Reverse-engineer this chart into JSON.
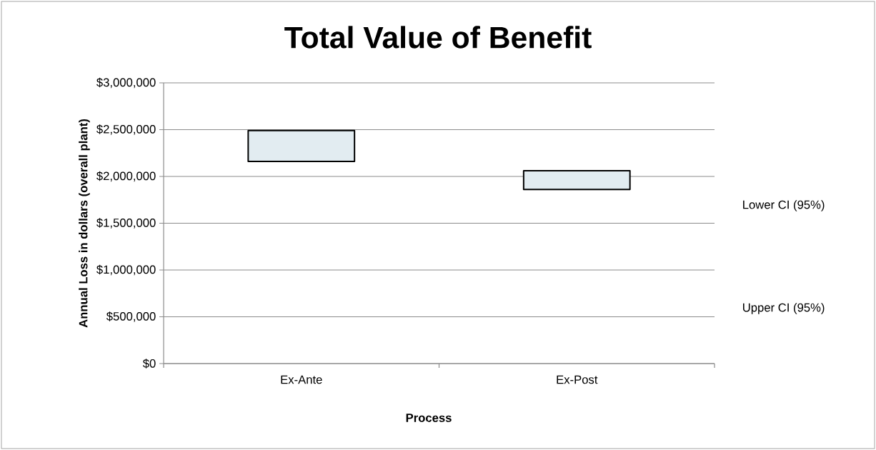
{
  "chart_data": {
    "type": "bar",
    "title": "Total Value of Benefit",
    "xlabel": "Process",
    "ylabel": "Annual Loss in dollars (overall plant)",
    "categories": [
      "Ex-Ante",
      "Ex-Post"
    ],
    "base": [
      2160000,
      1860000
    ],
    "values": [
      330000,
      200000
    ],
    "color": "#e2ecf1",
    "ylim": [
      0,
      3000000
    ],
    "yticks": [
      {
        "value": 0,
        "label": "$0"
      },
      {
        "value": 500000,
        "label": "$500,000"
      },
      {
        "value": 1000000,
        "label": "$1,000,000"
      },
      {
        "value": 1500000,
        "label": "$1,500,000"
      },
      {
        "value": 2000000,
        "label": "$2,000,000"
      },
      {
        "value": 2500000,
        "label": "$2,500,000"
      },
      {
        "value": 3000000,
        "label": "$3,000,000"
      }
    ],
    "grid": "y",
    "annotations": [
      "Lower CI (95%)",
      "Upper CI (95%)"
    ]
  }
}
